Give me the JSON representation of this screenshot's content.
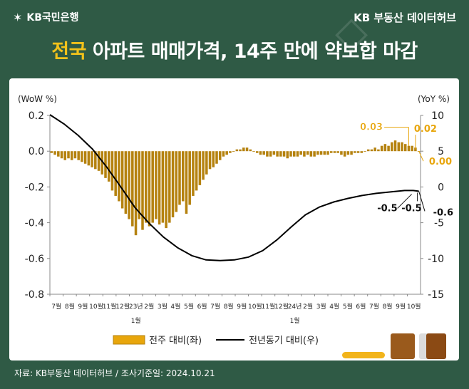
{
  "header": {
    "brand_name": "KB국민은행",
    "brand_icon": "kb-star-icon",
    "source_hub": "KB 부동산 데이터허브"
  },
  "headline": {
    "highlight": "전국",
    "rest": " 아파트 매매가격, 14주 만에 약보합 마감"
  },
  "footer": {
    "note": "자료: KB부동산 데이터허브 / 조사기준일: 2024.10.21"
  },
  "chart_data": {
    "type": "bar",
    "left_axis_label": "(WoW %)",
    "right_axis_label": "(YoY %)",
    "left_ylim": [
      -0.8,
      0.2
    ],
    "left_ticks": [
      "0.2",
      "0.0",
      "-0.2",
      "-0.4",
      "-0.6",
      "-0.8"
    ],
    "right_ylim": [
      -15,
      10
    ],
    "right_ticks": [
      "10",
      "5",
      "0",
      "-5",
      "-10",
      "-15"
    ],
    "x_month_labels": [
      "7월",
      "8월",
      "9월",
      "10월",
      "11월",
      "12월",
      "23년",
      "2월",
      "3월",
      "4월",
      "5월",
      "6월",
      "7월",
      "8월",
      "9월",
      "10월",
      "11월",
      "12월",
      "24년",
      "2월",
      "3월",
      "4월",
      "5월",
      "6월",
      "7월",
      "8월",
      "9월",
      "10월"
    ],
    "x_year_marks": [
      "1월",
      "1월"
    ],
    "grid": false,
    "legend_position": "bottom",
    "series": [
      {
        "name": "전주 대비(좌)",
        "type": "bar",
        "axis": "left",
        "color": "#b5820f",
        "values": [
          -0.01,
          -0.02,
          -0.03,
          -0.04,
          -0.05,
          -0.04,
          -0.05,
          -0.04,
          -0.05,
          -0.06,
          -0.07,
          -0.08,
          -0.09,
          -0.1,
          -0.11,
          -0.13,
          -0.15,
          -0.17,
          -0.22,
          -0.25,
          -0.28,
          -0.32,
          -0.35,
          -0.38,
          -0.42,
          -0.47,
          -0.38,
          -0.44,
          -0.4,
          -0.42,
          -0.4,
          -0.38,
          -0.41,
          -0.4,
          -0.43,
          -0.4,
          -0.37,
          -0.34,
          -0.3,
          -0.28,
          -0.35,
          -0.3,
          -0.25,
          -0.22,
          -0.19,
          -0.16,
          -0.13,
          -0.1,
          -0.09,
          -0.07,
          -0.05,
          -0.03,
          -0.02,
          -0.01,
          0.0,
          0.01,
          0.01,
          0.02,
          0.02,
          0.01,
          0.0,
          -0.01,
          -0.02,
          -0.02,
          -0.03,
          -0.03,
          -0.02,
          -0.03,
          -0.03,
          -0.03,
          -0.04,
          -0.03,
          -0.03,
          -0.03,
          -0.02,
          -0.03,
          -0.02,
          -0.03,
          -0.03,
          -0.02,
          -0.02,
          -0.02,
          -0.02,
          -0.01,
          -0.01,
          -0.01,
          -0.02,
          -0.03,
          -0.02,
          -0.02,
          -0.01,
          -0.01,
          -0.01,
          0.0,
          0.01,
          0.01,
          0.02,
          0.01,
          0.03,
          0.04,
          0.03,
          0.05,
          0.06,
          0.05,
          0.05,
          0.04,
          0.03,
          0.03,
          0.02,
          0.0
        ]
      },
      {
        "name": "전년동기 대비(우)",
        "type": "line",
        "axis": "right",
        "color": "#000000",
        "points": [
          [
            0,
            10.1
          ],
          [
            5,
            8.8
          ],
          [
            10,
            7.2
          ],
          [
            15,
            5.3
          ],
          [
            20,
            2.8
          ],
          [
            25,
            0.0
          ],
          [
            30,
            -2.9
          ],
          [
            35,
            -5.1
          ],
          [
            40,
            -7.0
          ],
          [
            45,
            -8.5
          ],
          [
            50,
            -9.6
          ],
          [
            55,
            -10.2
          ],
          [
            60,
            -10.3
          ],
          [
            65,
            -10.2
          ],
          [
            70,
            -9.8
          ],
          [
            75,
            -8.9
          ],
          [
            80,
            -7.4
          ],
          [
            85,
            -5.6
          ],
          [
            90,
            -3.9
          ],
          [
            95,
            -2.8
          ],
          [
            100,
            -2.1
          ],
          [
            105,
            -1.6
          ],
          [
            110,
            -1.2
          ],
          [
            115,
            -0.9
          ],
          [
            120,
            -0.7
          ],
          [
            125,
            -0.5
          ],
          [
            128,
            -0.5
          ],
          [
            130,
            -0.6
          ]
        ]
      }
    ],
    "annotations": [
      "0.03",
      "0.02",
      "0.00",
      "-0.5",
      "-0.5",
      "-0.6"
    ]
  }
}
